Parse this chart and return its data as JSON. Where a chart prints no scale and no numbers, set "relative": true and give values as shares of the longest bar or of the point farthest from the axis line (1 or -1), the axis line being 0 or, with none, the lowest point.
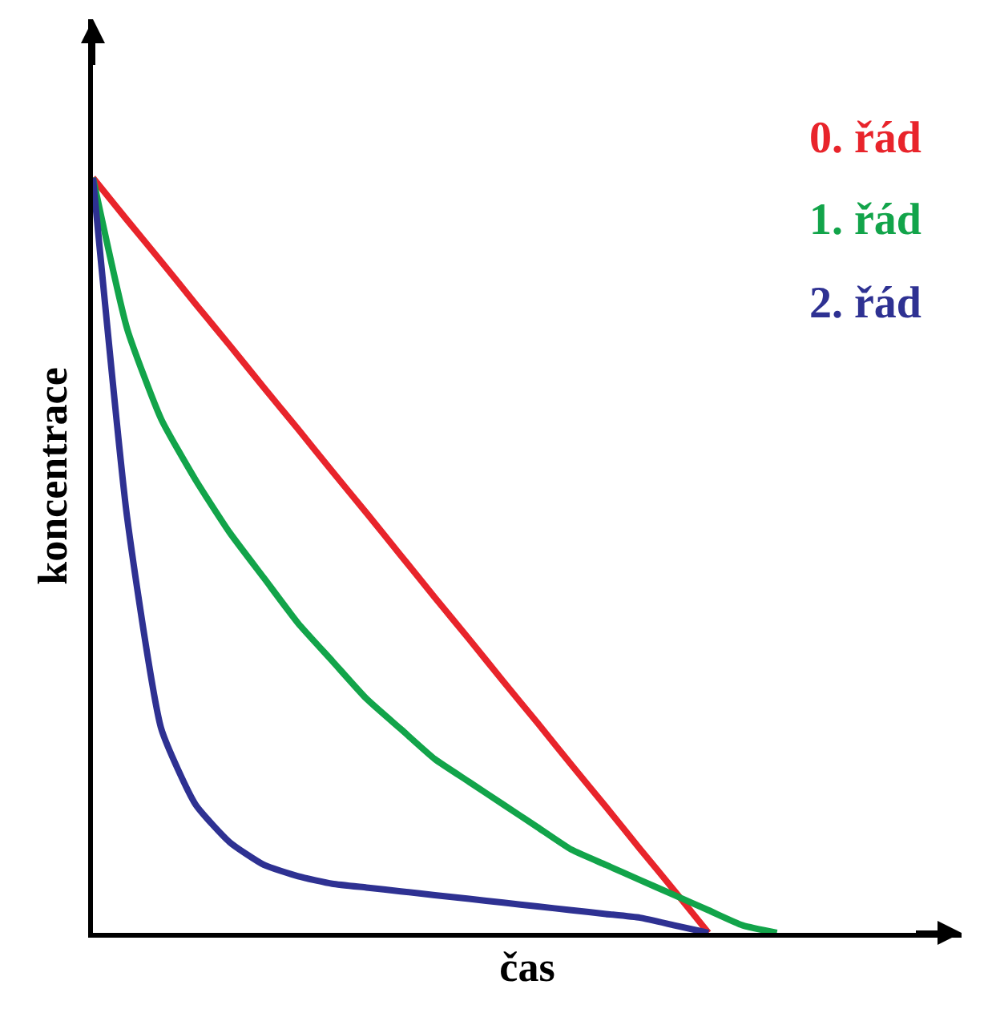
{
  "chart_data": {
    "type": "line",
    "relative": true,
    "xlabel": "čas",
    "ylabel": "koncentrace",
    "categories": [
      null,
      null,
      null,
      null,
      null,
      null,
      null,
      null,
      null,
      null,
      null,
      null,
      null,
      null,
      null,
      null,
      null,
      null,
      null,
      null,
      null
    ],
    "series": [
      {
        "name": "0. řád",
        "color": "#e8242b",
        "values": [
          1,
          0.944,
          0.889,
          0.833,
          0.778,
          0.722,
          0.667,
          0.611,
          0.556,
          0.5,
          0.444,
          0.389,
          0.333,
          0.278,
          0.222,
          0.167,
          0.111,
          0.056,
          0,
          null,
          null
        ]
      },
      {
        "name": "1. řád",
        "color": "#12a44a",
        "values": [
          1,
          0.8,
          0.68,
          0.6,
          0.53,
          0.47,
          0.41,
          0.36,
          0.31,
          0.27,
          0.23,
          0.2,
          0.17,
          0.14,
          0.11,
          0.09,
          0.07,
          0.05,
          0.03,
          0.01,
          0
        ]
      },
      {
        "name": "2. řád",
        "color": "#2e3192",
        "values": [
          1,
          0.55,
          0.27,
          0.17,
          0.12,
          0.09,
          0.075,
          0.065,
          0.06,
          0.055,
          0.05,
          0.045,
          0.04,
          0.035,
          0.03,
          0.025,
          0.02,
          0.01,
          0,
          null,
          null
        ]
      }
    ]
  }
}
